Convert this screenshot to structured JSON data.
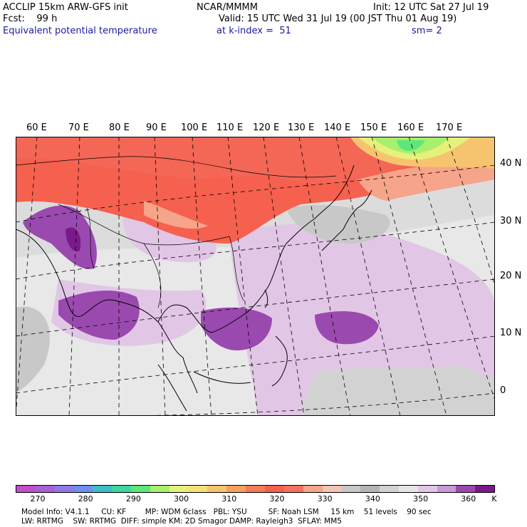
{
  "header": {
    "model_line": "ACCLIP 15km ARW-GFS init",
    "center": "NCAR/MMMM",
    "init": "Init: 12 UTC Sat 27 Jul 19",
    "fcst": "Fcst:    99 h",
    "valid": "Valid: 15 UTC Wed 31 Jul 19 (00 JST Thu 01 Aug 19)",
    "field": "Equivalent potential temperature",
    "level": "at k-index =  51",
    "smooth": "sm= 2"
  },
  "map": {
    "lon_labels": [
      "60 E",
      "70 E",
      "80 E",
      "90 E",
      "100 E",
      "110 E",
      "120 E",
      "130 E",
      "140 E",
      "150 E",
      "160 E",
      "170 E"
    ],
    "lat_labels": [
      "40 N",
      "30 N",
      "20 N",
      "10 N",
      "0"
    ],
    "colors": {
      "land_border": "#000000",
      "grid": "#000000"
    }
  },
  "colorbar": {
    "colors": [
      "#c04fc8",
      "#a862d6",
      "#8c7be6",
      "#6e8ff0",
      "#3fbfc4",
      "#3fd6a0",
      "#5fe67a",
      "#a6f06e",
      "#e6f07a",
      "#f6e07a",
      "#f6c46e",
      "#f6a060",
      "#f67c56",
      "#f6604e",
      "#f67060",
      "#f6a48a",
      "#f2c4b4",
      "#c8c8c8",
      "#b4b4b4",
      "#d2d2d2",
      "#e6e6e6",
      "#e2c6e6",
      "#c89ad6",
      "#9a4aae",
      "#7a1a8a"
    ],
    "tick_labels": [
      "270",
      "280",
      "290",
      "300",
      "310",
      "320",
      "330",
      "340",
      "350",
      "360"
    ],
    "unit": "K"
  },
  "footer": {
    "line1": "Model Info: V4.1.1     CU: KF        MP: WDM 6class   PBL: YSU         SF: Noah LSM     15 km    51 levels    90 sec",
    "line2": "LW: RRTMG    SW: RRTMG  DIFF: simple KM: 2D Smagor DAMP: Rayleigh3  SFLAY: MM5"
  }
}
